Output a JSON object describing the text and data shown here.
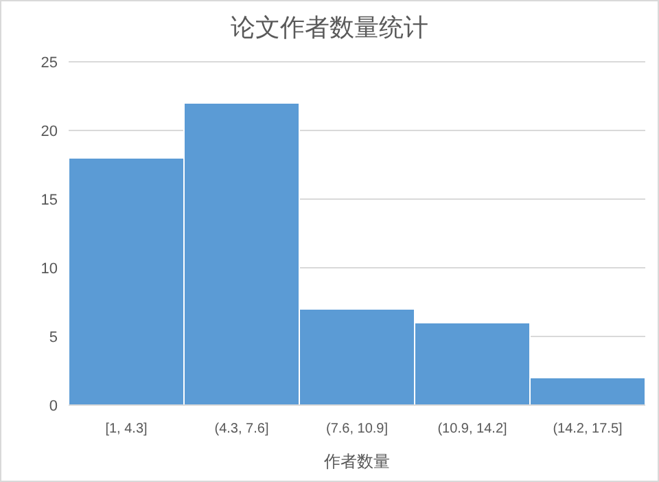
{
  "chart_data": {
    "type": "bar",
    "title": "论文作者数量统计",
    "xlabel": "作者数量",
    "categories": [
      "[1, 4.3]",
      "(4.3, 7.6]",
      "(7.6, 10.9]",
      "(10.9, 14.2]",
      "(14.2, 17.5]"
    ],
    "values": [
      18,
      22,
      7,
      6,
      2
    ],
    "color": "#5b9bd5",
    "ylim": [
      0,
      25
    ],
    "yticks": [
      0,
      5,
      10,
      15,
      20,
      25
    ],
    "grid": "y"
  }
}
